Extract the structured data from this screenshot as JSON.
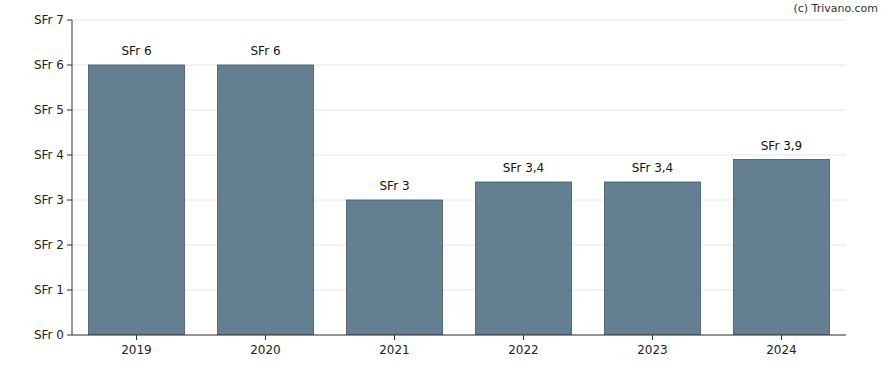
{
  "chart_data": {
    "type": "bar",
    "categories": [
      "2019",
      "2020",
      "2021",
      "2022",
      "2023",
      "2024"
    ],
    "values": [
      6,
      6,
      3,
      3.4,
      3.4,
      3.9
    ],
    "value_labels": [
      "SFr 6",
      "SFr 6",
      "SFr 3",
      "SFr 3,4",
      "SFr 3,4",
      "SFr 3,9"
    ],
    "color": "#647f92",
    "ylim": [
      0,
      7
    ],
    "yticks": [
      {
        "value": 0,
        "label": "SFr 0"
      },
      {
        "value": 1,
        "label": "SFr 1"
      },
      {
        "value": 2,
        "label": "SFr 2"
      },
      {
        "value": 3,
        "label": "SFr 3"
      },
      {
        "value": 4,
        "label": "SFr 4"
      },
      {
        "value": 5,
        "label": "SFr 5"
      },
      {
        "value": 6,
        "label": "SFr 6"
      },
      {
        "value": 7,
        "label": "SFr 7"
      }
    ],
    "grid": true,
    "data_labels": true,
    "annotations": [
      "(c) Trivano.com"
    ]
  }
}
